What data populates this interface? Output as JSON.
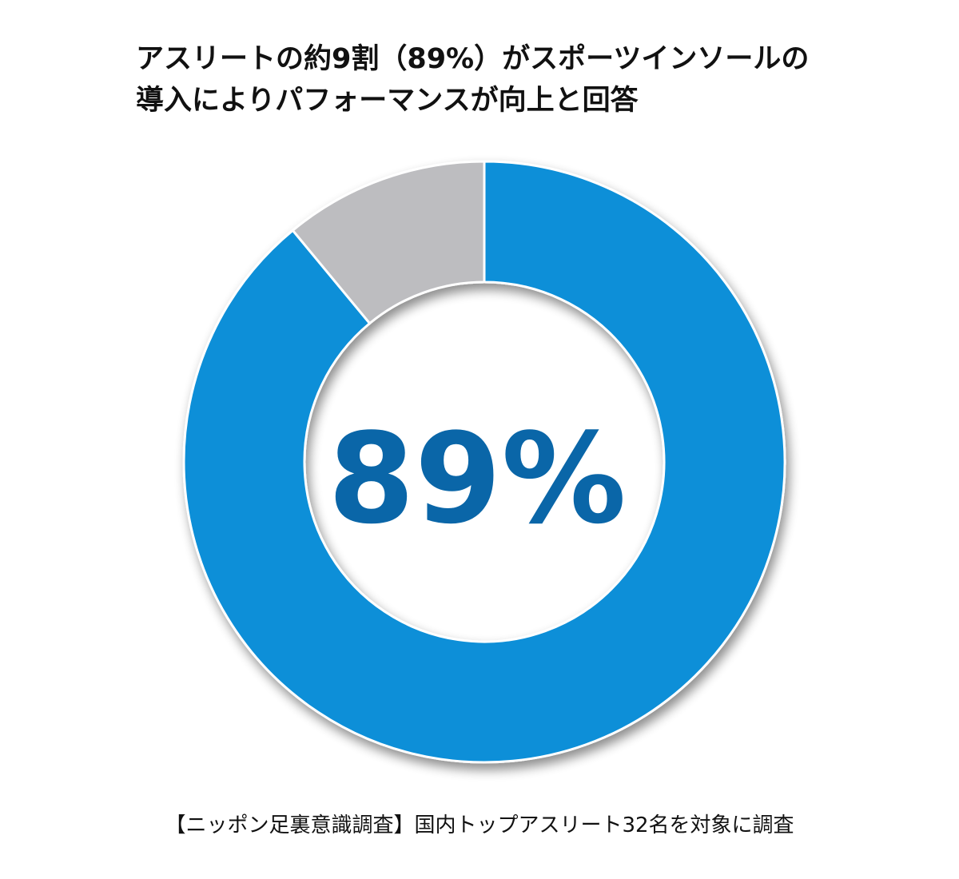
{
  "chart_data": {
    "type": "pie",
    "variant": "donut",
    "title_lines": [
      "アスリートの約9割（89%）がスポーツインソールの",
      "導入によりパフォーマンスが向上と回答"
    ],
    "center_label": "89%",
    "slices": [
      {
        "value": 89,
        "color": "#0a8fd8"
      },
      {
        "value": 11,
        "color": "#bdbdc0"
      }
    ],
    "center_text_color": "#0a66a8",
    "footnote": "【ニッポン足裏意識調査】国内トップアスリート32名を対象に調査"
  }
}
